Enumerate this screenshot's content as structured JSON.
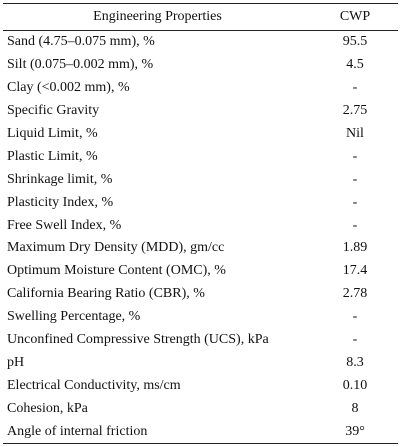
{
  "table": {
    "headers": [
      "Engineering Properties",
      "CWP"
    ],
    "rows": [
      [
        "Sand (4.75–0.075 mm), %",
        "95.5"
      ],
      [
        "Silt (0.075–0.002 mm), %",
        "4.5"
      ],
      [
        "Clay (<0.002 mm), %",
        "-"
      ],
      [
        "Specific Gravity",
        "2.75"
      ],
      [
        "Liquid Limit, %",
        "Nil"
      ],
      [
        "Plastic Limit, %",
        "-"
      ],
      [
        "Shrinkage limit, %",
        "-"
      ],
      [
        "Plasticity Index, %",
        "-"
      ],
      [
        "Free Swell Index, %",
        "-"
      ],
      [
        "Maximum Dry Density (MDD), gm/cc",
        "1.89"
      ],
      [
        "Optimum Moisture Content (OMC), %",
        "17.4"
      ],
      [
        "California Bearing Ratio (CBR), %",
        "2.78"
      ],
      [
        "Swelling Percentage, %",
        "-"
      ],
      [
        "Unconfined Compressive Strength (UCS), kPa",
        "-"
      ],
      [
        "pH",
        "8.3"
      ],
      [
        "Electrical Conductivity, ms/cm",
        "0.10"
      ],
      [
        "Cohesion, kPa",
        "8"
      ],
      [
        "Angle of internal friction",
        "39°"
      ]
    ]
  }
}
